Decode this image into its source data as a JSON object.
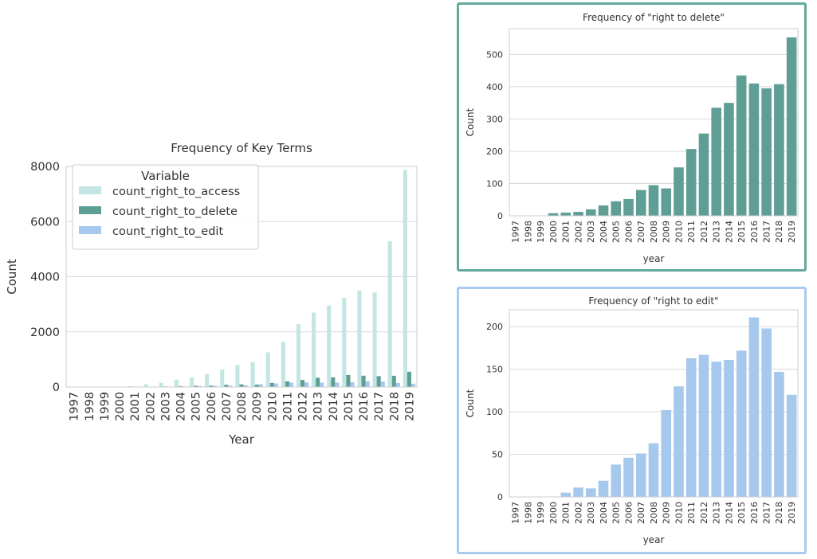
{
  "colors": {
    "access": "#c3e6e3",
    "delete": "#5f9e95",
    "edit": "#a6c8ed",
    "delete_frame": "#64a99c",
    "edit_frame": "#a9c9ee",
    "grid": "#d9d9d9",
    "text": "#333333"
  },
  "chart_data": [
    {
      "type": "bar",
      "title": "Frequency of Key Terms",
      "xlabel": "Year",
      "ylabel": "Count",
      "ylim": [
        0,
        8000
      ],
      "yticks": [
        0,
        2000,
        4000,
        6000,
        8000
      ],
      "grid": true,
      "legend_title": "Variable",
      "legend_position": "upper-left",
      "categories": [
        "1997",
        "1998",
        "1999",
        "2000",
        "2001",
        "2002",
        "2003",
        "2004",
        "2005",
        "2006",
        "2007",
        "2008",
        "2009",
        "2010",
        "2011",
        "2012",
        "2013",
        "2014",
        "2015",
        "2016",
        "2017",
        "2018",
        "2019"
      ],
      "series": [
        {
          "name": "count_right_to_access",
          "color_key": "access",
          "values": [
            2,
            4,
            6,
            12,
            30,
            100,
            150,
            270,
            340,
            480,
            640,
            800,
            900,
            1260,
            1640,
            2280,
            2700,
            2960,
            3230,
            3500,
            3430,
            5280,
            7880
          ]
        },
        {
          "name": "count_right_to_delete",
          "color_key": "delete",
          "values": [
            0,
            0,
            0,
            8,
            10,
            12,
            20,
            32,
            45,
            52,
            80,
            95,
            85,
            150,
            207,
            255,
            335,
            350,
            435,
            410,
            395,
            408,
            553
          ]
        },
        {
          "name": "count_right_to_edit",
          "color_key": "edit",
          "values": [
            0,
            0,
            0,
            0,
            5,
            11,
            10,
            19,
            38,
            46,
            51,
            63,
            102,
            130,
            163,
            167,
            159,
            161,
            172,
            211,
            198,
            147,
            120
          ]
        }
      ]
    },
    {
      "type": "bar",
      "title": "Frequency of \"right to delete\"",
      "xlabel": "year",
      "ylabel": "Count",
      "ylim": [
        0,
        580
      ],
      "yticks": [
        0,
        100,
        200,
        300,
        400,
        500
      ],
      "grid": true,
      "categories": [
        "1997",
        "1998",
        "1999",
        "2000",
        "2001",
        "2002",
        "2003",
        "2004",
        "2005",
        "2006",
        "2007",
        "2008",
        "2009",
        "2010",
        "2011",
        "2012",
        "2013",
        "2014",
        "2015",
        "2016",
        "2017",
        "2018",
        "2019"
      ],
      "series": [
        {
          "color_key": "delete",
          "values": [
            0,
            0,
            0,
            8,
            10,
            12,
            20,
            32,
            45,
            52,
            80,
            95,
            85,
            150,
            207,
            255,
            335,
            350,
            435,
            410,
            395,
            408,
            553
          ]
        }
      ]
    },
    {
      "type": "bar",
      "title": "Frequency of \"right to edit\"",
      "xlabel": "year",
      "ylabel": "Count",
      "ylim": [
        0,
        220
      ],
      "yticks": [
        0,
        50,
        100,
        150,
        200
      ],
      "grid": true,
      "categories": [
        "1997",
        "1998",
        "1999",
        "2000",
        "2001",
        "2002",
        "2003",
        "2004",
        "2005",
        "2006",
        "2007",
        "2008",
        "2009",
        "2010",
        "2011",
        "2012",
        "2013",
        "2014",
        "2015",
        "2016",
        "2017",
        "2018",
        "2019"
      ],
      "series": [
        {
          "color_key": "edit",
          "values": [
            0,
            0,
            0,
            0,
            5,
            11,
            10,
            19,
            38,
            46,
            51,
            63,
            102,
            130,
            163,
            167,
            159,
            161,
            172,
            211,
            198,
            147,
            120
          ]
        }
      ]
    }
  ]
}
